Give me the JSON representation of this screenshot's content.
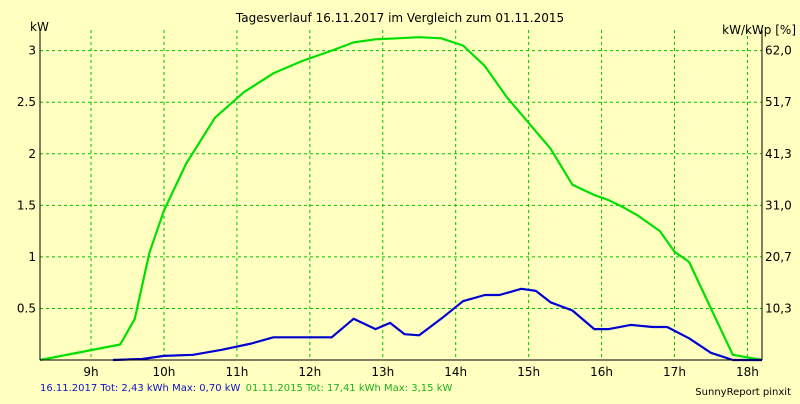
{
  "chart_data": {
    "type": "line",
    "title": "Tagesverlauf 16.11.2017 im Vergleich zum 01.11.2015",
    "ylabel_left": "kW",
    "ylabel_right": "kW/kWp [%]",
    "xlim": [
      8.3,
      18.2
    ],
    "ylim": [
      0,
      3.2
    ],
    "x_ticks": [
      9,
      10,
      11,
      12,
      13,
      14,
      15,
      16,
      17,
      18
    ],
    "x_tick_labels": [
      "9h",
      "10h",
      "11h",
      "12h",
      "13h",
      "14h",
      "15h",
      "16h",
      "17h",
      "18h"
    ],
    "y_ticks_left": [
      0.5,
      1,
      1.5,
      2,
      2.5,
      3
    ],
    "y_tick_labels_left": [
      "0.5",
      "1",
      "1.5",
      "2",
      "2.5",
      "3"
    ],
    "y_tick_labels_right": [
      "10,3",
      "20,7",
      "31,0",
      "41,3",
      "51,7",
      "62,0"
    ],
    "grid": true,
    "colors": {
      "background": "#ffffc0",
      "grid": "#00c000",
      "series_2015": "#00e000",
      "series_2017": "#0000d0"
    },
    "series": [
      {
        "name": "01.11.2015",
        "color": "#00e000",
        "x": [
          8.3,
          9.4,
          9.6,
          9.8,
          10.0,
          10.3,
          10.7,
          11.1,
          11.5,
          11.9,
          12.3,
          12.6,
          12.9,
          13.2,
          13.5,
          13.8,
          14.1,
          14.4,
          14.7,
          15.0,
          15.3,
          15.6,
          15.9,
          16.1,
          16.3,
          16.5,
          16.8,
          17.0,
          17.2,
          17.5,
          17.8,
          18.2
        ],
        "y": [
          0.0,
          0.15,
          0.4,
          1.04,
          1.45,
          1.9,
          2.35,
          2.6,
          2.78,
          2.9,
          3.0,
          3.08,
          3.11,
          3.12,
          3.13,
          3.12,
          3.05,
          2.85,
          2.55,
          2.3,
          2.05,
          1.7,
          1.6,
          1.55,
          1.48,
          1.4,
          1.25,
          1.05,
          0.95,
          0.5,
          0.05,
          0.0
        ]
      },
      {
        "name": "16.11.2017",
        "color": "#0000d0",
        "x": [
          9.3,
          9.7,
          10.0,
          10.4,
          10.8,
          11.2,
          11.5,
          11.9,
          12.3,
          12.6,
          12.9,
          13.1,
          13.3,
          13.5,
          13.8,
          14.1,
          14.4,
          14.6,
          14.9,
          15.1,
          15.3,
          15.6,
          15.9,
          16.1,
          16.4,
          16.7,
          16.9,
          17.2,
          17.5,
          17.8,
          18.2
        ],
        "y": [
          0.0,
          0.01,
          0.04,
          0.05,
          0.1,
          0.16,
          0.22,
          0.22,
          0.22,
          0.4,
          0.3,
          0.36,
          0.25,
          0.24,
          0.4,
          0.57,
          0.63,
          0.63,
          0.69,
          0.67,
          0.56,
          0.48,
          0.3,
          0.3,
          0.34,
          0.32,
          0.32,
          0.21,
          0.07,
          0.0,
          0.0
        ]
      }
    ]
  },
  "footer": {
    "text_2017": "16.11.2017 Tot: 2,43 kWh Max: 0,70 kW",
    "text_2015": "01.11.2015 Tot: 17,41 kWh Max: 3,15 kW",
    "credit": "SunnyReport pinxit"
  }
}
